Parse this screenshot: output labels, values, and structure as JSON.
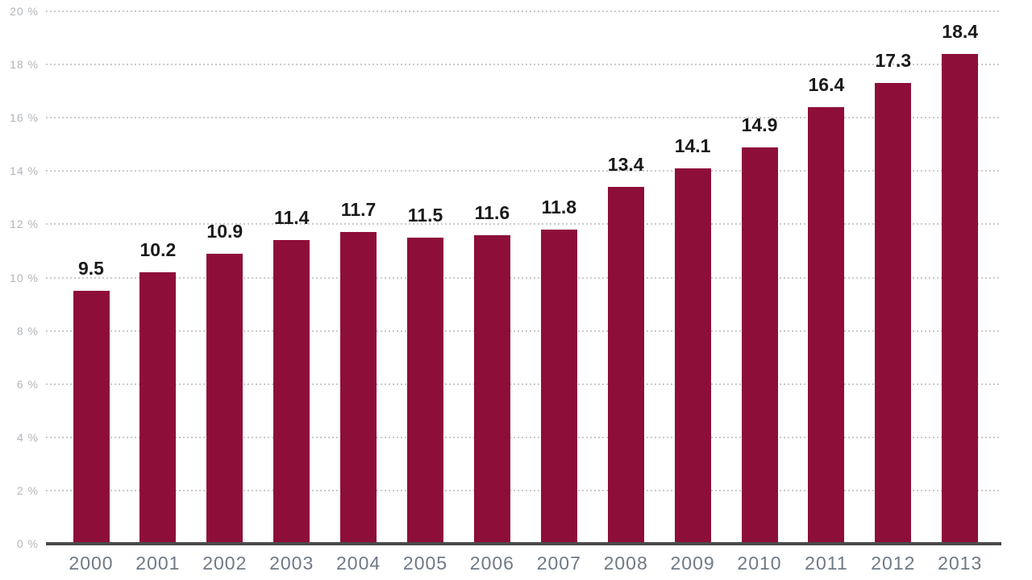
{
  "chart_data": {
    "type": "bar",
    "title": "",
    "xlabel": "",
    "ylabel": "",
    "categories": [
      "2000",
      "2001",
      "2002",
      "2003",
      "2004",
      "2005",
      "2006",
      "2007",
      "2008",
      "2009",
      "2010",
      "2011",
      "2012",
      "2013"
    ],
    "values": [
      9.5,
      10.2,
      10.9,
      11.4,
      11.7,
      11.5,
      11.6,
      11.8,
      13.4,
      14.1,
      14.9,
      16.4,
      17.3,
      18.4
    ],
    "value_labels": [
      "9.5",
      "10.2",
      "10.9",
      "11.4",
      "11.7",
      "11.5",
      "11.6",
      "11.8",
      "13.4",
      "14.1",
      "14.9",
      "16.4",
      "17.3",
      "18.4"
    ],
    "ylim": [
      0,
      20
    ],
    "ytick_step": 2,
    "ytick_labels": [
      "0 %",
      "2 %",
      "4 %",
      "6 %",
      "8 %",
      "10 %",
      "12 %",
      "14 %",
      "16 %",
      "18 %",
      "20 %"
    ],
    "grid": "horizontal-dotted",
    "legend_position": "none",
    "colors": {
      "bar": "#8E0E3A",
      "gridline": "#cacaca",
      "axis_line": "#4a4a4a",
      "value_label": "#1a1a1a",
      "x_tick_label": "#6f7a87",
      "y_tick_label": "#b2b6ba",
      "background": "#ffffff"
    }
  }
}
